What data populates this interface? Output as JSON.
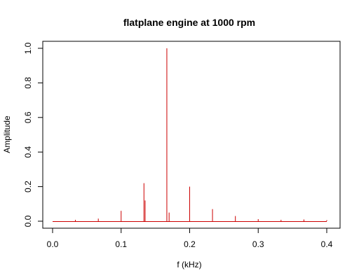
{
  "chart_data": {
    "type": "line",
    "title": "flatplane engine at 1000 rpm",
    "xlabel": "f (kHz)",
    "ylabel": "Amplitude",
    "xlim": [
      0.0,
      0.4
    ],
    "ylim": [
      0.0,
      1.0
    ],
    "x_ticks": [
      "0.0",
      "0.1",
      "0.2",
      "0.3",
      "0.4"
    ],
    "y_ticks": [
      "0.0",
      "0.2",
      "0.4",
      "0.6",
      "0.8",
      "1.0"
    ],
    "grid": false,
    "line_color": "#cc0000",
    "peaks": [
      {
        "f": 0.0333,
        "amplitude": 0.008
      },
      {
        "f": 0.0667,
        "amplitude": 0.015
      },
      {
        "f": 0.1,
        "amplitude": 0.06
      },
      {
        "f": 0.1333,
        "amplitude": 0.22
      },
      {
        "f": 0.135,
        "amplitude": 0.12
      },
      {
        "f": 0.1667,
        "amplitude": 1.0
      },
      {
        "f": 0.17,
        "amplitude": 0.05
      },
      {
        "f": 0.2,
        "amplitude": 0.2
      },
      {
        "f": 0.2333,
        "amplitude": 0.07
      },
      {
        "f": 0.2667,
        "amplitude": 0.03
      },
      {
        "f": 0.3,
        "amplitude": 0.012
      },
      {
        "f": 0.3333,
        "amplitude": 0.008
      },
      {
        "f": 0.3667,
        "amplitude": 0.01
      },
      {
        "f": 0.4,
        "amplitude": 0.006
      }
    ]
  }
}
